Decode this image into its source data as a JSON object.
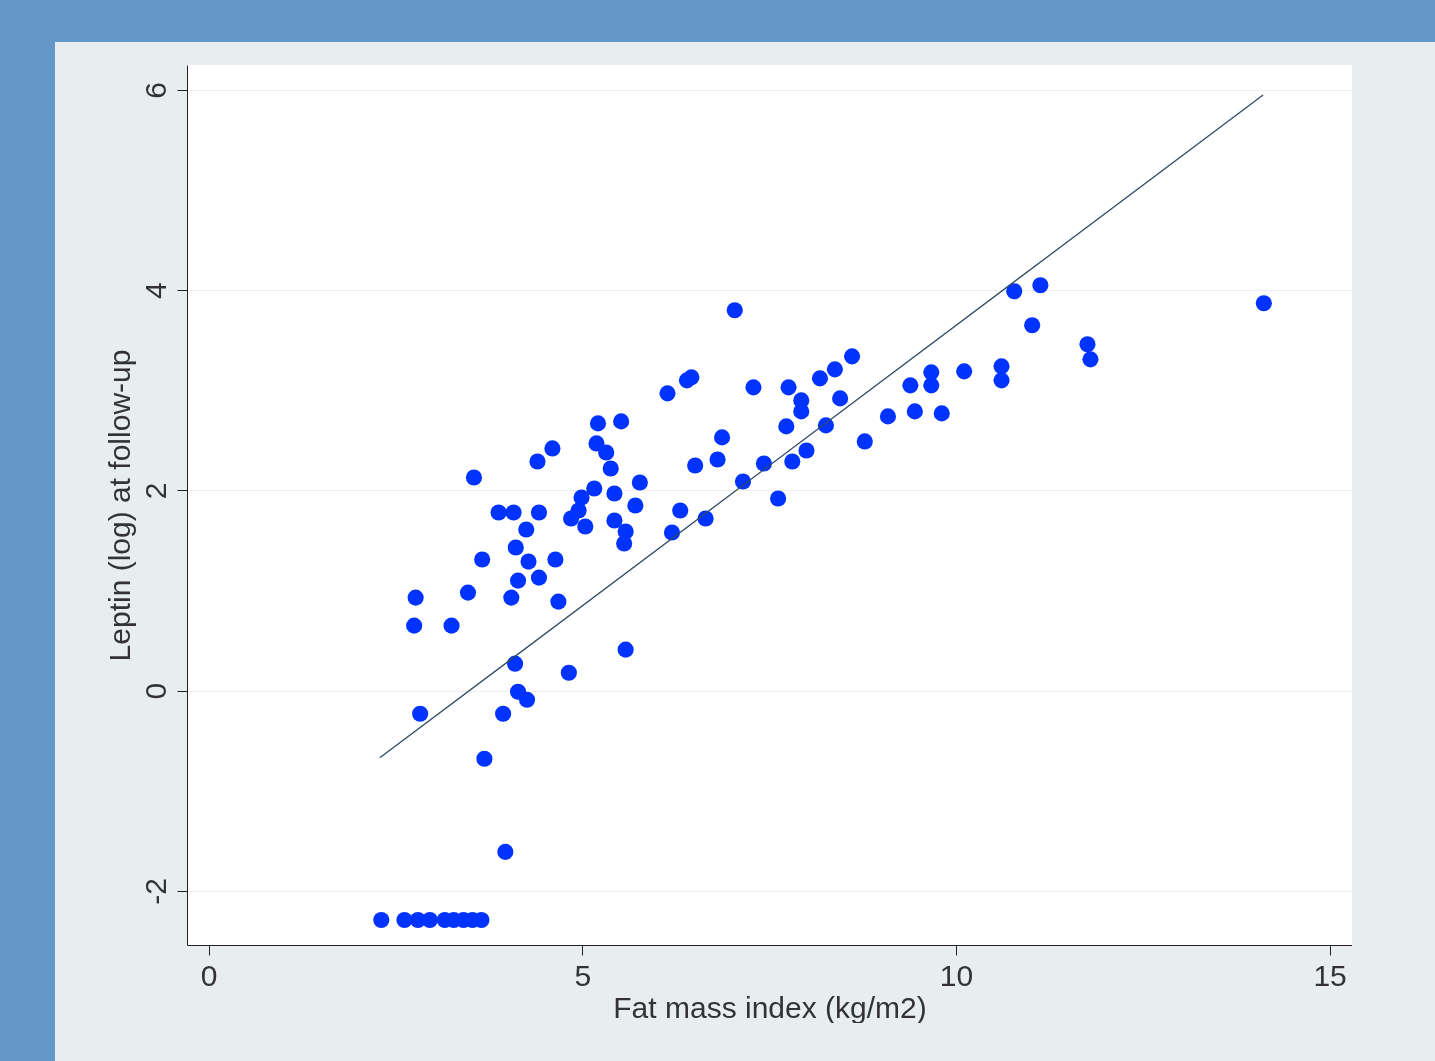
{
  "chart_data": {
    "type": "scatter",
    "xlabel": "Fat mass index (kg/m2)",
    "ylabel": "Leptin (log) at follow-up",
    "xlim": [
      -0.29,
      15.3
    ],
    "ylim": [
      -2.54,
      6.25
    ],
    "xticks": [
      0,
      5,
      10,
      15
    ],
    "yticks": [
      -2,
      0,
      2,
      4,
      6
    ],
    "grid": "y",
    "marker": "circle",
    "series": [
      {
        "color": "#0033ff",
        "x": [
          2.31,
          2.62,
          2.8,
          2.96,
          3.16,
          3.28,
          3.41,
          3.53,
          3.65,
          2.77,
          2.75,
          2.83,
          3.25,
          3.47,
          3.55,
          3.66,
          3.69,
          3.88,
          4.08,
          4.05,
          4.11,
          4.14,
          4.1,
          3.94,
          3.97,
          4.14,
          4.26,
          4.25,
          4.28,
          4.4,
          4.42,
          4.42,
          4.6,
          4.64,
          4.68,
          4.82,
          4.85,
          4.95,
          4.99,
          5.04,
          5.16,
          5.21,
          5.19,
          5.32,
          5.38,
          5.43,
          5.43,
          5.52,
          5.56,
          5.58,
          5.58,
          5.71,
          5.77,
          6.14,
          6.2,
          6.31,
          6.4,
          6.46,
          6.51,
          6.65,
          6.81,
          6.87,
          7.04,
          7.15,
          7.29,
          7.43,
          7.62,
          7.73,
          7.76,
          7.81,
          7.93,
          7.93,
          8.0,
          8.18,
          8.26,
          8.38,
          8.45,
          8.61,
          8.78,
          9.09,
          9.39,
          9.45,
          9.67,
          9.67,
          9.81,
          10.11,
          10.61,
          10.61,
          10.78,
          11.02,
          11.13,
          11.76,
          11.8,
          14.12
        ],
        "values": [
          -2.29,
          -2.29,
          -2.29,
          -2.29,
          -2.29,
          -2.29,
          -2.29,
          -2.29,
          -2.29,
          0.93,
          0.65,
          -0.23,
          0.65,
          0.98,
          2.13,
          1.31,
          -0.68,
          1.78,
          1.78,
          0.93,
          1.43,
          1.1,
          0.27,
          -0.23,
          -1.61,
          -0.01,
          -0.09,
          1.61,
          1.29,
          2.29,
          1.78,
          1.13,
          2.42,
          1.31,
          0.89,
          0.18,
          1.72,
          1.8,
          1.93,
          1.64,
          2.02,
          2.67,
          2.47,
          2.38,
          2.22,
          1.97,
          1.7,
          2.69,
          1.47,
          1.59,
          0.41,
          1.85,
          2.08,
          2.97,
          1.58,
          1.8,
          3.1,
          3.13,
          2.25,
          1.72,
          2.31,
          2.53,
          3.8,
          2.09,
          3.03,
          2.27,
          1.92,
          2.64,
          3.03,
          2.29,
          2.9,
          2.79,
          2.4,
          3.12,
          2.65,
          3.21,
          2.92,
          3.34,
          2.49,
          2.74,
          3.05,
          2.79,
          3.18,
          3.05,
          2.77,
          3.19,
          3.24,
          3.1,
          3.99,
          3.65,
          4.05,
          3.46,
          3.31,
          3.87
        ]
      },
      {
        "type": "line",
        "color": "#2f4a66",
        "marker": "none",
        "x": [
          2.29,
          14.11
        ],
        "values": [
          -0.67,
          5.95
        ]
      }
    ]
  }
}
